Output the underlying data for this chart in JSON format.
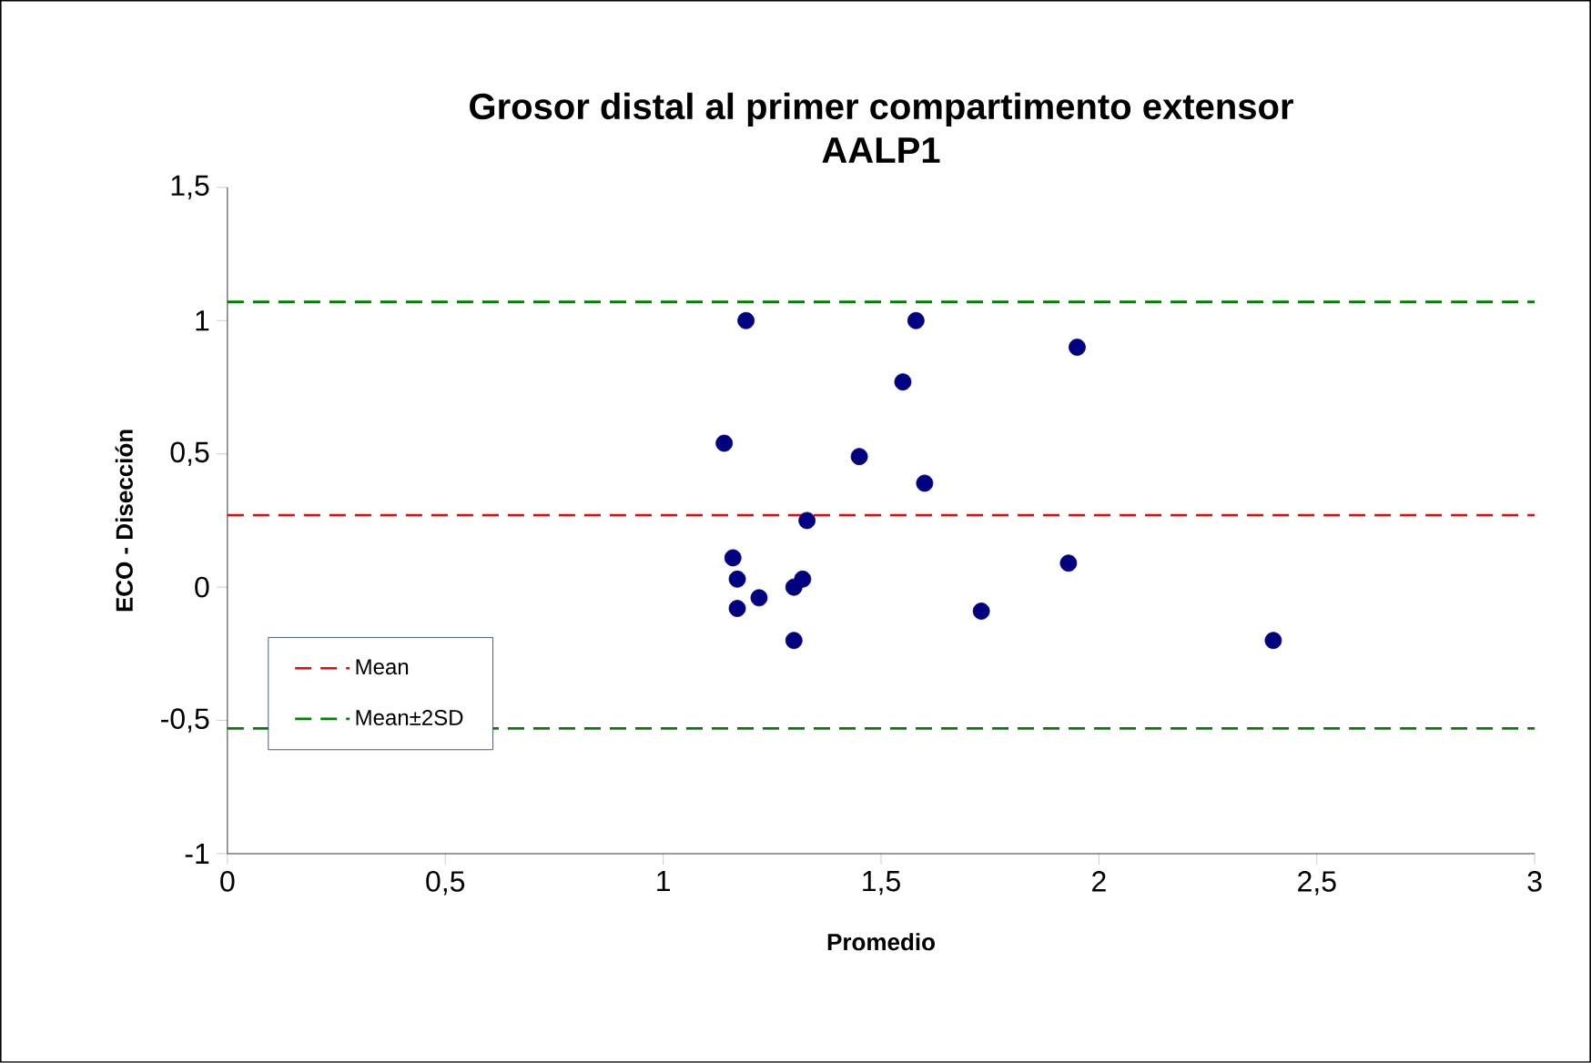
{
  "chart_data": {
    "type": "scatter",
    "title": "Grosor distal al primer compartimento extensor\nAALP1",
    "xlabel": "Promedio",
    "ylabel": "ECO - Disección",
    "x": [
      1.19,
      1.58,
      1.95,
      1.55,
      1.14,
      1.45,
      1.6,
      1.33,
      1.16,
      1.93,
      1.17,
      1.32,
      1.3,
      1.22,
      1.17,
      1.73,
      1.3,
      2.4
    ],
    "series": [
      {
        "color": "#000080",
        "values": [
          1.0,
          1.0,
          0.9,
          0.77,
          0.54,
          0.49,
          0.39,
          0.25,
          0.11,
          0.09,
          0.03,
          0.03,
          0.0,
          -0.04,
          -0.08,
          -0.09,
          -0.2,
          -0.2
        ]
      }
    ],
    "marker": "circle",
    "xlim": [
      0,
      3
    ],
    "ylim": [
      -1,
      1.5
    ],
    "xticks": [
      0,
      {
        "value": 0.5,
        "label": "0,5"
      },
      1,
      {
        "value": 1.5,
        "label": "1,5"
      },
      2,
      {
        "value": 2.5,
        "label": "2,5"
      },
      3
    ],
    "yticks": [
      -1,
      {
        "value": -0.5,
        "label": "-0,5"
      },
      0,
      {
        "value": 0.5,
        "label": "0,5"
      },
      1,
      {
        "value": 1.5,
        "label": "1,5"
      }
    ],
    "ref_lines": [
      {
        "axis": "y",
        "value": 0.27,
        "label": "Mean",
        "color": "#ff0000",
        "line_style": "dashed"
      },
      {
        "axis": "y",
        "value": 1.07,
        "label": "Mean±2SD",
        "color": "#008000",
        "line_style": "dashed"
      },
      {
        "axis": "y",
        "value": -0.53,
        "color": "#008000",
        "line_style": "dashed"
      }
    ],
    "legend": "bottom left",
    "grid": false
  }
}
